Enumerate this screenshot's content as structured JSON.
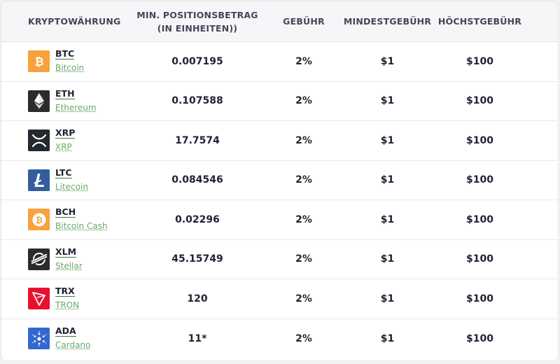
{
  "headers": {
    "crypto": "KRYPTOWÄHRUNG",
    "min_position_line1": "MIN. POSITIONSBETRAG",
    "min_position_line2": "(IN EINHEITEN))",
    "fee": "GEBÜHR",
    "min_fee": "MINDESTGEBÜHR",
    "max_fee": "HÖCHSTGEBÜHR"
  },
  "rows": [
    {
      "symbol": "BTC",
      "name": "Bitcoin",
      "min_position": "0.007195",
      "fee": "2%",
      "min_fee": "$1",
      "max_fee": "$100",
      "icon": "bitcoin-icon",
      "color": "#f7a23b"
    },
    {
      "symbol": "ETH",
      "name": "Ethereum",
      "min_position": "0.107588",
      "fee": "2%",
      "min_fee": "$1",
      "max_fee": "$100",
      "icon": "ethereum-icon",
      "color": "#2b2b2b"
    },
    {
      "symbol": "XRP",
      "name": "XRP",
      "min_position": "17.7574",
      "fee": "2%",
      "min_fee": "$1",
      "max_fee": "$100",
      "icon": "xrp-icon",
      "color": "#23292f"
    },
    {
      "symbol": "LTC",
      "name": "Litecoin",
      "min_position": "0.084546",
      "fee": "2%",
      "min_fee": "$1",
      "max_fee": "$100",
      "icon": "litecoin-icon",
      "color": "#345d9d"
    },
    {
      "symbol": "BCH",
      "name": "Bitcoin Cash",
      "min_position": "0.02296",
      "fee": "2%",
      "min_fee": "$1",
      "max_fee": "$100",
      "icon": "bitcoin-cash-icon",
      "color": "#f7a23b"
    },
    {
      "symbol": "XLM",
      "name": "Stellar",
      "min_position": "45.15749",
      "fee": "2%",
      "min_fee": "$1",
      "max_fee": "$100",
      "icon": "stellar-icon",
      "color": "#2b2b2b"
    },
    {
      "symbol": "TRX",
      "name": "TRON",
      "min_position": "120",
      "fee": "2%",
      "min_fee": "$1",
      "max_fee": "$100",
      "icon": "tron-icon",
      "color": "#e8112d"
    },
    {
      "symbol": "ADA",
      "name": "Cardano",
      "min_position": "11*",
      "fee": "2%",
      "min_fee": "$1",
      "max_fee": "$100",
      "icon": "cardano-icon",
      "color": "#3468d1"
    }
  ]
}
